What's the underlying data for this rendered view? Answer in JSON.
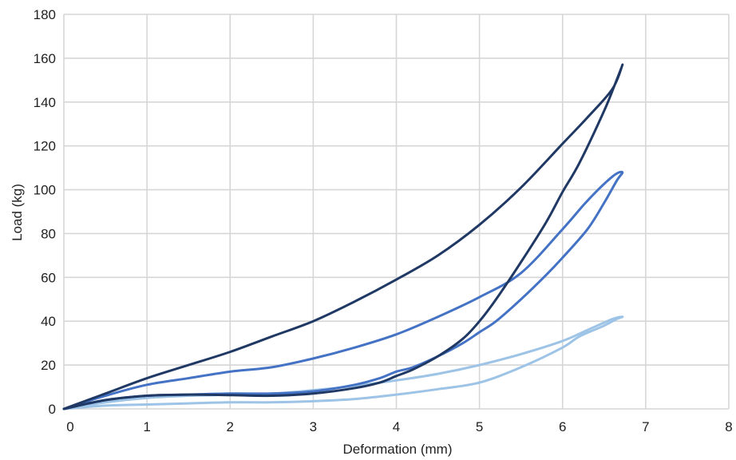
{
  "chart_data": {
    "type": "line",
    "title": "",
    "xlabel": "Deformation (mm)",
    "ylabel": "Load (kg)",
    "xlim": [
      0,
      8
    ],
    "ylim": [
      0,
      180
    ],
    "xticks": [
      "0",
      "1",
      "2",
      "3",
      "4",
      "5",
      "6",
      "7",
      "8"
    ],
    "yticks": [
      "0",
      "20",
      "40",
      "60",
      "80",
      "100",
      "120",
      "140",
      "160",
      "180"
    ],
    "grid": true,
    "legend": "none",
    "series": [
      {
        "color": "#1f3864",
        "x": [
          0,
          0.5,
          1.0,
          1.5,
          2.0,
          2.5,
          3.0,
          3.5,
          4.0,
          4.5,
          5.0,
          5.5,
          6.0,
          6.3,
          6.6,
          6.72,
          6.65,
          6.5,
          6.2,
          6.0,
          5.8,
          5.5,
          5.2,
          5.0,
          4.8,
          4.5,
          4.2,
          4.0,
          3.8,
          3.5,
          3.0,
          2.5,
          2.0,
          1.5,
          1.0,
          0.5,
          0
        ],
        "y": [
          0,
          7,
          14,
          20,
          26,
          33,
          40,
          49,
          59,
          70,
          84,
          101,
          121,
          133,
          146,
          157,
          150,
          136,
          112,
          99,
          85,
          67,
          50,
          40,
          32,
          24,
          18,
          15,
          12,
          9.5,
          7,
          6,
          6.3,
          6.5,
          6,
          4,
          0
        ]
      },
      {
        "color": "#4472c4",
        "x": [
          0,
          0.5,
          1.0,
          1.5,
          2.0,
          2.5,
          3.0,
          3.5,
          4.0,
          4.5,
          5.0,
          5.5,
          6.0,
          6.3,
          6.6,
          6.72,
          6.65,
          6.5,
          6.3,
          6.0,
          5.8,
          5.5,
          5.2,
          5.0,
          4.8,
          4.5,
          4.2,
          4.0,
          3.8,
          3.5,
          3.0,
          2.5,
          2.0,
          1.5,
          1.0,
          0.5,
          0
        ],
        "y": [
          0,
          6,
          11,
          14,
          17,
          19,
          23,
          28,
          34,
          42,
          51,
          62,
          82,
          95,
          106,
          108,
          104,
          94,
          82,
          69,
          61,
          50,
          40,
          35,
          30,
          24,
          19,
          17,
          14,
          11,
          8,
          7,
          7,
          6.5,
          6,
          4,
          0
        ]
      },
      {
        "color": "#9dc3e6",
        "x": [
          0,
          0.5,
          1.0,
          1.5,
          2.0,
          2.5,
          3.0,
          3.5,
          4.0,
          4.5,
          5.0,
          5.5,
          6.0,
          6.3,
          6.6,
          6.72,
          6.65,
          6.5,
          6.2,
          6.0,
          5.5,
          5.0,
          4.5,
          4.0,
          3.5,
          3.0,
          2.5,
          2.0,
          1.5,
          1.0,
          0.5,
          0
        ],
        "y": [
          0,
          3,
          5,
          6,
          6.5,
          7,
          8.5,
          10.5,
          13,
          16,
          20,
          25,
          31,
          36,
          41,
          42,
          41,
          38,
          33,
          28,
          19,
          12,
          9,
          6.5,
          4.5,
          3.5,
          3,
          3,
          2.5,
          2,
          1.5,
          0
        ]
      }
    ]
  }
}
